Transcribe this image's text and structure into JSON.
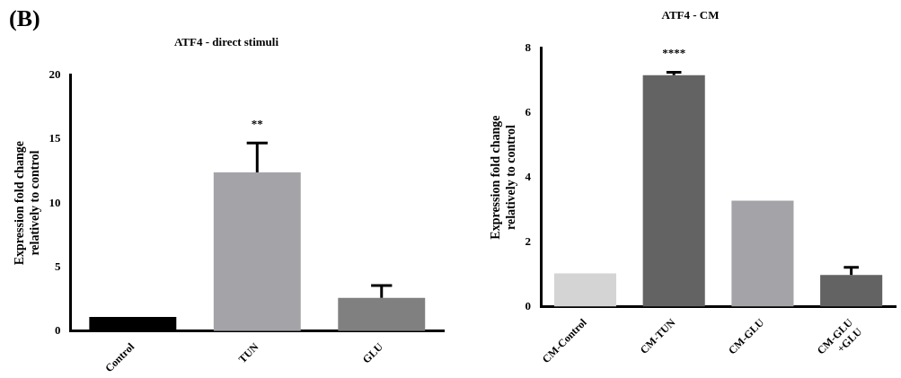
{
  "chart_data": [
    {
      "type": "bar",
      "title": "ATF4 - direct stimuli",
      "ylabel": "Expression fold change\nrelatively to control",
      "categories": [
        "Control",
        "TUN",
        "GLU"
      ],
      "values": [
        1.1,
        12.4,
        2.6
      ],
      "colors": [
        "#000000",
        "#a3a3a8",
        "#808080"
      ],
      "errors": [
        null,
        [
          12.4,
          14.7
        ],
        [
          2.6,
          3.55
        ]
      ],
      "ylim": [
        0,
        20
      ],
      "yticks": [
        0,
        5,
        10,
        15,
        20
      ],
      "grid": false,
      "legend": false,
      "annotations": [
        "(B)",
        "**"
      ]
    },
    {
      "type": "bar",
      "title": "ATF4 - CM",
      "ylabel": "Expression fold change\nrelatively to control",
      "categories": [
        "CM-Control",
        "CM-TUN",
        "CM-GLU",
        "CM-GLU\n+GLU"
      ],
      "values": [
        1.03,
        7.16,
        3.28,
        0.98
      ],
      "colors": [
        "#d4d4d4",
        "#636363",
        "#a3a3a8",
        "#636363"
      ],
      "errors": [
        null,
        [
          7.16,
          7.25
        ],
        null,
        [
          0.98,
          1.22
        ]
      ],
      "ylim": [
        0,
        8
      ],
      "yticks": [
        0,
        2,
        4,
        6,
        8
      ],
      "grid": false,
      "legend": false,
      "annotations": [
        "****"
      ]
    }
  ]
}
